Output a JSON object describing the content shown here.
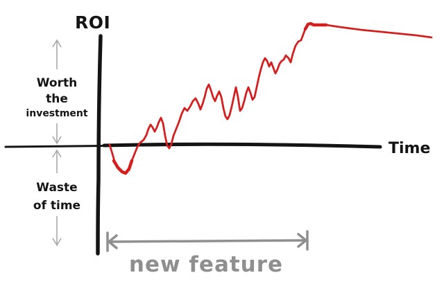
{
  "axes": {
    "y_label": "ROI",
    "x_label": "Time"
  },
  "zones": {
    "worth": {
      "line1": "Worth",
      "line2": "the",
      "line3": "investment"
    },
    "waste": {
      "line1": "Waste",
      "line2": "of time"
    }
  },
  "span": {
    "label": "new feature"
  },
  "colors": {
    "axes": "#141414",
    "curve": "#d41f1f",
    "span": "#8f8f8f",
    "zone_arrows": "#a8a8a8"
  }
}
